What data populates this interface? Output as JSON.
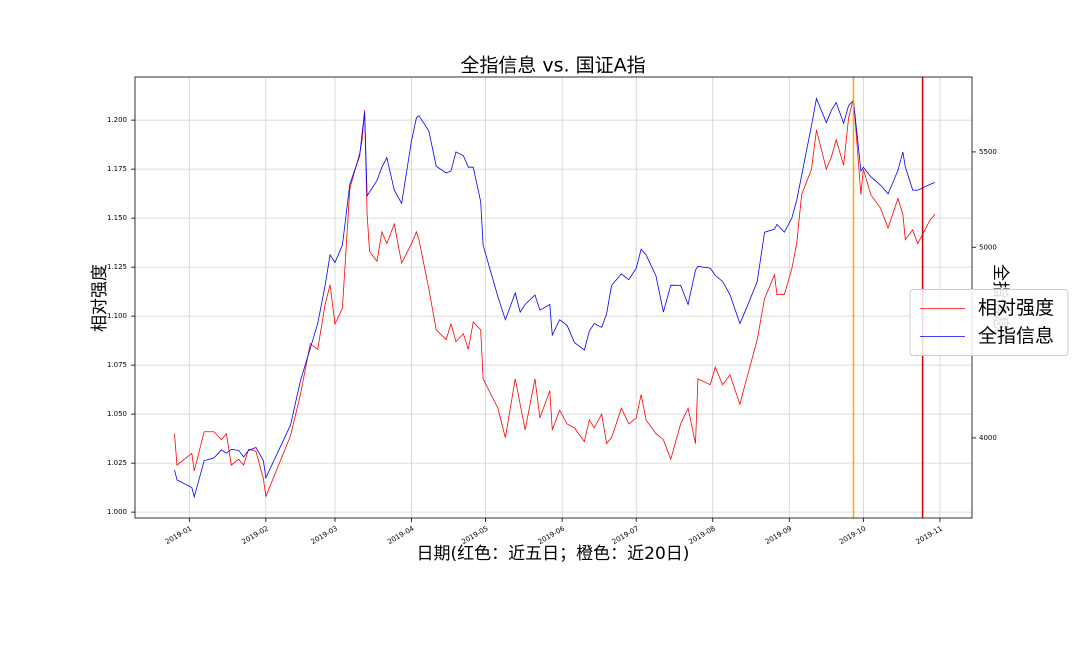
{
  "chart_data": {
    "type": "line",
    "title": "全指信息 vs. 国证A指",
    "xlabel": "日期(红色：近五日；橙色：近20日)",
    "ylabel": "相对强度",
    "y2label": "全指信息",
    "x": [
      "2018-12-26",
      "2018-12-27",
      "2019-01-02",
      "2019-01-03",
      "2019-01-07",
      "2019-01-11",
      "2019-01-14",
      "2019-01-16",
      "2019-01-18",
      "2019-01-21",
      "2019-01-23",
      "2019-01-25",
      "2019-01-28",
      "2019-01-31",
      "2019-02-01",
      "2019-02-11",
      "2019-02-15",
      "2019-02-19",
      "2019-02-22",
      "2019-02-25",
      "2019-02-27",
      "2019-03-01",
      "2019-03-04",
      "2019-03-07",
      "2019-03-11",
      "2019-03-12",
      "2019-03-13",
      "2019-03-14",
      "2019-03-15",
      "2019-03-18",
      "2019-03-20",
      "2019-03-22",
      "2019-03-25",
      "2019-03-28",
      "2019-04-01",
      "2019-04-03",
      "2019-04-04",
      "2019-04-08",
      "2019-04-11",
      "2019-04-15",
      "2019-04-17",
      "2019-04-19",
      "2019-04-22",
      "2019-04-24",
      "2019-04-26",
      "2019-04-29",
      "2019-04-30",
      "2019-05-06",
      "2019-05-09",
      "2019-05-13",
      "2019-05-15",
      "2019-05-17",
      "2019-05-21",
      "2019-05-23",
      "2019-05-27",
      "2019-05-28",
      "2019-05-31",
      "2019-06-03",
      "2019-06-06",
      "2019-06-10",
      "2019-06-12",
      "2019-06-14",
      "2019-06-17",
      "2019-06-19",
      "2019-06-21",
      "2019-06-25",
      "2019-06-28",
      "2019-07-01",
      "2019-07-03",
      "2019-07-05",
      "2019-07-09",
      "2019-07-12",
      "2019-07-15",
      "2019-07-19",
      "2019-07-22",
      "2019-07-25",
      "2019-07-26",
      "2019-07-31",
      "2019-08-02",
      "2019-08-05",
      "2019-08-08",
      "2019-08-12",
      "2019-08-13",
      "2019-08-16",
      "2019-08-19",
      "2019-08-22",
      "2019-08-26",
      "2019-08-27",
      "2019-08-30",
      "2019-09-02",
      "2019-09-04",
      "2019-09-06",
      "2019-09-10",
      "2019-09-12",
      "2019-09-16",
      "2019-09-18",
      "2019-09-20",
      "2019-09-23",
      "2019-09-25",
      "2019-09-27",
      "2019-09-30",
      "2019-10-01",
      "2019-10-04",
      "2019-10-08",
      "2019-10-11",
      "2019-10-15",
      "2019-10-17",
      "2019-10-18",
      "2019-10-21",
      "2019-10-23",
      "2019-10-28",
      "2019-10-30"
    ],
    "series": [
      {
        "name": "相对强度",
        "color": "#ff0000",
        "values": [
          1.04,
          1.024,
          1.03,
          1.021,
          1.041,
          1.041,
          1.037,
          1.04,
          1.024,
          1.027,
          1.024,
          1.032,
          1.031,
          1.017,
          1.008,
          1.039,
          1.06,
          1.086,
          1.083,
          1.106,
          1.116,
          1.096,
          1.104,
          1.165,
          1.183,
          1.19,
          1.205,
          1.152,
          1.133,
          1.128,
          1.143,
          1.137,
          1.147,
          1.127,
          1.137,
          1.143,
          1.139,
          1.114,
          1.093,
          1.088,
          1.096,
          1.087,
          1.091,
          1.083,
          1.097,
          1.093,
          1.068,
          1.053,
          1.038,
          1.068,
          1.055,
          1.042,
          1.068,
          1.048,
          1.062,
          1.042,
          1.052,
          1.045,
          1.043,
          1.036,
          1.047,
          1.043,
          1.05,
          1.035,
          1.038,
          1.053,
          1.045,
          1.048,
          1.06,
          1.047,
          1.04,
          1.037,
          1.027,
          1.045,
          1.053,
          1.035,
          1.068,
          1.065,
          1.074,
          1.065,
          1.07,
          1.055,
          1.06,
          1.074,
          1.088,
          1.109,
          1.121,
          1.111,
          1.111,
          1.124,
          1.137,
          1.162,
          1.175,
          1.195,
          1.175,
          1.181,
          1.19,
          1.177,
          1.201,
          1.211,
          1.162,
          1.175,
          1.162,
          1.155,
          1.145,
          1.16,
          1.152,
          1.139,
          1.144,
          1.137,
          1.149,
          1.152
        ]
      },
      {
        "name": "全指信息",
        "color": "#0000ff",
        "axis": "y2",
        "values": [
          3832,
          3780,
          3740,
          3691,
          3880,
          3895,
          3937,
          3920,
          3940,
          3935,
          3900,
          3935,
          3950,
          3880,
          3791,
          4068,
          4300,
          4470,
          4600,
          4800,
          4960,
          4920,
          5011,
          5330,
          5480,
          5600,
          5707,
          5270,
          5290,
          5350,
          5420,
          5470,
          5300,
          5230,
          5560,
          5680,
          5690,
          5610,
          5425,
          5390,
          5400,
          5500,
          5480,
          5420,
          5420,
          5240,
          5010,
          4740,
          4620,
          4760,
          4660,
          4700,
          4750,
          4670,
          4700,
          4539,
          4620,
          4590,
          4500,
          4461,
          4560,
          4600,
          4580,
          4650,
          4800,
          4860,
          4830,
          4890,
          4990,
          4960,
          4850,
          4660,
          4801,
          4800,
          4700,
          4880,
          4900,
          4890,
          4853,
          4820,
          4750,
          4600,
          4630,
          4723,
          4820,
          5079,
          5095,
          5120,
          5079,
          5152,
          5246,
          5377,
          5639,
          5780,
          5654,
          5717,
          5759,
          5650,
          5743,
          5770,
          5400,
          5420,
          5370,
          5325,
          5280,
          5403,
          5500,
          5420,
          5300,
          5299,
          5330,
          5340
        ]
      }
    ],
    "xlim": [
      "2018-12-10",
      "2019-11-14"
    ],
    "xticks": [
      {
        "value": "2019-01-01",
        "label": "2019-01"
      },
      {
        "value": "2019-02-01",
        "label": "2019-02"
      },
      {
        "value": "2019-03-01",
        "label": "2019-03"
      },
      {
        "value": "2019-04-01",
        "label": "2019-04"
      },
      {
        "value": "2019-05-01",
        "label": "2019-05"
      },
      {
        "value": "2019-06-01",
        "label": "2019-06"
      },
      {
        "value": "2019-07-01",
        "label": "2019-07"
      },
      {
        "value": "2019-08-01",
        "label": "2019-08"
      },
      {
        "value": "2019-09-01",
        "label": "2019-09"
      },
      {
        "value": "2019-10-01",
        "label": "2019-10"
      },
      {
        "value": "2019-11-01",
        "label": "2019-11"
      }
    ],
    "ylim": [
      0.997,
      1.222
    ],
    "yticks": [
      {
        "value": 1.0,
        "label": "1.000"
      },
      {
        "value": 1.025,
        "label": "1.025"
      },
      {
        "value": 1.05,
        "label": "1.050"
      },
      {
        "value": 1.075,
        "label": "1.075"
      },
      {
        "value": 1.1,
        "label": "1.100"
      },
      {
        "value": 1.125,
        "label": "1.125"
      },
      {
        "value": 1.15,
        "label": "1.150"
      },
      {
        "value": 1.175,
        "label": "1.175"
      },
      {
        "value": 1.2,
        "label": "1.200"
      }
    ],
    "y2lim": [
      3580,
      5893
    ],
    "y2ticks": [
      4000,
      5000,
      5500
    ],
    "vlines": [
      {
        "x": "2019-09-27",
        "color": "#ffa500"
      },
      {
        "x": "2019-10-25",
        "color": "#cc0000"
      }
    ],
    "grid": true,
    "legend": "center right"
  }
}
